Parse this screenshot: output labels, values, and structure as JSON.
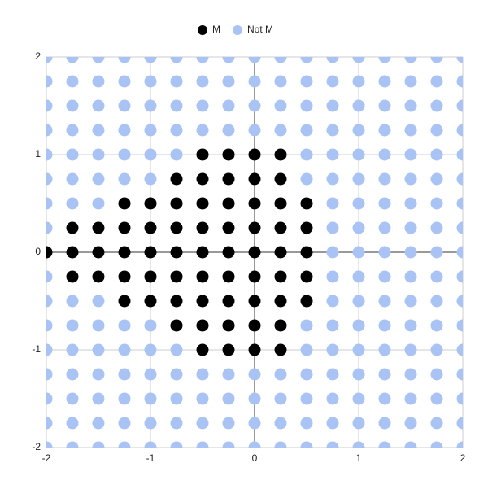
{
  "chart_data": {
    "type": "scatter",
    "xlim": [
      -2,
      2
    ],
    "ylim": [
      -2,
      2
    ],
    "xticks": [
      -2,
      -1,
      0,
      1,
      2
    ],
    "yticks": [
      -2,
      -1,
      0,
      1,
      2
    ],
    "grid": true,
    "legend": "top",
    "series": [
      {
        "name": "M",
        "color": "#000000",
        "x": [
          -0.5,
          -0.25,
          0,
          0.25,
          -0.75,
          -0.5,
          -0.25,
          0,
          0.25,
          -1.25,
          -1,
          -0.75,
          -0.5,
          -0.25,
          0,
          0.25,
          0.5,
          -1.75,
          -1.5,
          -1.25,
          -1,
          -0.75,
          -0.5,
          -0.25,
          0,
          0.25,
          0.5,
          -2,
          -1.75,
          -1.5,
          -1.25,
          -1,
          -0.75,
          -0.5,
          -0.25,
          0,
          0.25,
          0.5,
          -1.75,
          -1.5,
          -1.25,
          -1,
          -0.75,
          -0.5,
          -0.25,
          0,
          0.25,
          0.5,
          -1.25,
          -1,
          -0.75,
          -0.5,
          -0.25,
          0,
          0.25,
          0.5,
          -0.75,
          -0.5,
          -0.25,
          0,
          0.25,
          -0.5,
          -0.25,
          0,
          0.25
        ],
        "values": [
          1,
          1,
          1,
          1,
          0.75,
          0.75,
          0.75,
          0.75,
          0.75,
          0.5,
          0.5,
          0.5,
          0.5,
          0.5,
          0.5,
          0.5,
          0.5,
          0.25,
          0.25,
          0.25,
          0.25,
          0.25,
          0.25,
          0.25,
          0.25,
          0.25,
          0.25,
          0,
          0,
          0,
          0,
          0,
          0,
          0,
          0,
          0,
          0,
          0,
          -0.25,
          -0.25,
          -0.25,
          -0.25,
          -0.25,
          -0.25,
          -0.25,
          -0.25,
          -0.25,
          -0.25,
          -0.5,
          -0.5,
          -0.5,
          -0.5,
          -0.5,
          -0.5,
          -0.5,
          -0.5,
          -0.75,
          -0.75,
          -0.75,
          -0.75,
          -0.75,
          -1,
          -1,
          -1,
          -1
        ]
      },
      {
        "name": "Not M",
        "color": "#a9c4f4",
        "x": [
          -2,
          -1.75,
          -1.5,
          -1.25,
          -1,
          -0.75,
          -0.5,
          -0.25,
          0,
          0.25,
          0.5,
          0.75,
          1,
          1.25,
          1.5,
          1.75,
          2,
          -2,
          -1.75,
          -1.5,
          -1.25,
          -1,
          -0.75,
          -0.5,
          -0.25,
          0,
          0.25,
          0.5,
          0.75,
          1,
          1.25,
          1.5,
          1.75,
          2,
          -2,
          -1.75,
          -1.5,
          -1.25,
          -1,
          -0.75,
          -0.5,
          -0.25,
          0,
          0.25,
          0.5,
          0.75,
          1,
          1.25,
          1.5,
          1.75,
          2,
          -2,
          -1.75,
          -1.5,
          -1.25,
          -1,
          -0.75,
          -0.5,
          -0.25,
          0,
          0.25,
          0.5,
          0.75,
          1,
          1.25,
          1.5,
          1.75,
          2,
          -2,
          -1.75,
          -1.5,
          -1.25,
          -1,
          -0.75,
          0.5,
          0.75,
          1,
          1.25,
          1.5,
          1.75,
          2,
          -2,
          -1.75,
          -1.5,
          -1.25,
          -1,
          0.5,
          0.75,
          1,
          1.25,
          1.5,
          1.75,
          2,
          -2,
          -1.75,
          -1.5,
          0.75,
          1,
          1.25,
          1.5,
          1.75,
          2,
          -2,
          0.75,
          1,
          1.25,
          1.5,
          1.75,
          2,
          0.75,
          1,
          1.25,
          1.5,
          1.75,
          2,
          -2,
          0.75,
          1,
          1.25,
          1.5,
          1.75,
          2,
          -2,
          -1.75,
          -1.5,
          0.75,
          1,
          1.25,
          1.5,
          1.75,
          2,
          -2,
          -1.75,
          -1.5,
          -1.25,
          -1,
          0.5,
          0.75,
          1,
          1.25,
          1.5,
          1.75,
          2,
          -2,
          -1.75,
          -1.5,
          -1.25,
          -1,
          -0.75,
          0.5,
          0.75,
          1,
          1.25,
          1.5,
          1.75,
          2,
          -2,
          -1.75,
          -1.5,
          -1.25,
          -1,
          -0.75,
          -0.5,
          -0.25,
          0,
          0.25,
          0.5,
          0.75,
          1,
          1.25,
          1.5,
          1.75,
          2,
          -2,
          -1.75,
          -1.5,
          -1.25,
          -1,
          -0.75,
          -0.5,
          -0.25,
          0,
          0.25,
          0.5,
          0.75,
          1,
          1.25,
          1.5,
          1.75,
          2,
          -2,
          -1.75,
          -1.5,
          -1.25,
          -1,
          -0.75,
          -0.5,
          -0.25,
          0,
          0.25,
          0.5,
          0.75,
          1,
          1.25,
          1.5,
          1.75,
          2,
          -2,
          -1.75,
          -1.5,
          -1.25,
          -1,
          -0.75,
          -0.5,
          -0.25,
          0,
          0.25,
          0.5,
          0.75,
          1,
          1.25,
          1.5,
          1.75,
          2
        ],
        "values": [
          2,
          2,
          2,
          2,
          2,
          2,
          2,
          2,
          2,
          2,
          2,
          2,
          2,
          2,
          2,
          2,
          2,
          1.75,
          1.75,
          1.75,
          1.75,
          1.75,
          1.75,
          1.75,
          1.75,
          1.75,
          1.75,
          1.75,
          1.75,
          1.75,
          1.75,
          1.75,
          1.75,
          1.75,
          1.5,
          1.5,
          1.5,
          1.5,
          1.5,
          1.5,
          1.5,
          1.5,
          1.5,
          1.5,
          1.5,
          1.5,
          1.5,
          1.5,
          1.5,
          1.5,
          1.5,
          1.25,
          1.25,
          1.25,
          1.25,
          1.25,
          1.25,
          1.25,
          1.25,
          1.25,
          1.25,
          1.25,
          1.25,
          1.25,
          1.25,
          1.25,
          1.25,
          1.25,
          1,
          1,
          1,
          1,
          1,
          1,
          1,
          1,
          1,
          1,
          1,
          1,
          1,
          0.75,
          0.75,
          0.75,
          0.75,
          0.75,
          0.75,
          0.75,
          0.75,
          0.75,
          0.75,
          0.75,
          0.75,
          0.5,
          0.5,
          0.5,
          0.5,
          0.5,
          0.5,
          0.5,
          0.5,
          0.5,
          0.25,
          0.25,
          0.25,
          0.25,
          0.25,
          0.25,
          0.25,
          0,
          0,
          0,
          0,
          0,
          0,
          -0.25,
          -0.25,
          -0.25,
          -0.25,
          -0.25,
          -0.25,
          -0.25,
          -0.5,
          -0.5,
          -0.5,
          -0.5,
          -0.5,
          -0.5,
          -0.5,
          -0.5,
          -0.5,
          -0.75,
          -0.75,
          -0.75,
          -0.75,
          -0.75,
          -0.75,
          -0.75,
          -0.75,
          -0.75,
          -0.75,
          -0.75,
          -0.75,
          -1,
          -1,
          -1,
          -1,
          -1,
          -1,
          -1,
          -1,
          -1,
          -1,
          -1,
          -1,
          -1,
          -1.25,
          -1.25,
          -1.25,
          -1.25,
          -1.25,
          -1.25,
          -1.25,
          -1.25,
          -1.25,
          -1.25,
          -1.25,
          -1.25,
          -1.25,
          -1.25,
          -1.25,
          -1.25,
          -1.25,
          -1.5,
          -1.5,
          -1.5,
          -1.5,
          -1.5,
          -1.5,
          -1.5,
          -1.5,
          -1.5,
          -1.5,
          -1.5,
          -1.5,
          -1.5,
          -1.5,
          -1.5,
          -1.5,
          -1.5,
          -1.75,
          -1.75,
          -1.75,
          -1.75,
          -1.75,
          -1.75,
          -1.75,
          -1.75,
          -1.75,
          -1.75,
          -1.75,
          -1.75,
          -1.75,
          -1.75,
          -1.75,
          -1.75,
          -1.75,
          -2,
          -2,
          -2,
          -2,
          -2,
          -2,
          -2,
          -2,
          -2,
          -2,
          -2,
          -2,
          -2,
          -2,
          -2,
          -2,
          -2
        ]
      }
    ]
  }
}
